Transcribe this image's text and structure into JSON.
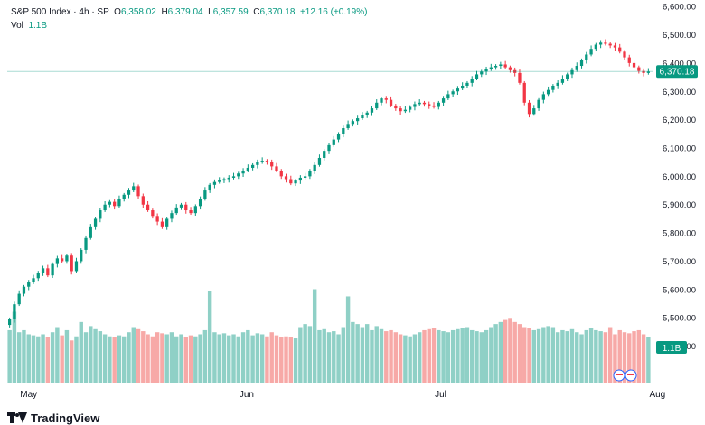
{
  "legend": {
    "symbol": "S&P 500 Index · 4h · SP",
    "o_label": "O",
    "o_value": "6,358.02",
    "h_label": "H",
    "h_value": "6,379.04",
    "l_label": "L",
    "l_value": "6,357.59",
    "c_label": "C",
    "c_value": "6,370.18",
    "change": "+12.16 (+0.19%)",
    "vol_label": "Vol",
    "vol_value": "1.1B"
  },
  "price_badge": "6,370.18",
  "volume_badge": "1.1B",
  "brand": "TradingView",
  "colors": {
    "up": "#089981",
    "down": "#f23645",
    "vol_up": "#8fd0c6",
    "vol_down": "#f7a9a7",
    "axis_text": "#131722",
    "price_line": "#089981"
  },
  "chart_data": {
    "type": "candlestick",
    "y_ticks": [
      5400,
      5500,
      5600,
      5700,
      5800,
      5900,
      6000,
      6100,
      6200,
      6300,
      6400,
      6500,
      6600
    ],
    "y_tick_labels": [
      "5,400.00",
      "5,500.00",
      "5,600.00",
      "5,700.00",
      "5,800.00",
      "5,900.00",
      "6,000.00",
      "6,100.00",
      "6,200.00",
      "6,300.00",
      "6,400.00",
      "6,500.00",
      "6,600.00"
    ],
    "ylim": [
      5335,
      6610
    ],
    "x_labels": [
      {
        "label": "May",
        "index": 1
      },
      {
        "label": "Jun",
        "index": 47
      },
      {
        "label": "Jul",
        "index": 88
      },
      {
        "label": "Aug",
        "index": 133
      }
    ],
    "last_price": 6370.18,
    "last_volume": "1.1B",
    "grid": false,
    "closes": [
      5495,
      5548,
      5585,
      5610,
      5625,
      5640,
      5660,
      5675,
      5650,
      5690,
      5710,
      5700,
      5720,
      5665,
      5700,
      5740,
      5782,
      5820,
      5850,
      5880,
      5900,
      5910,
      5895,
      5920,
      5935,
      5950,
      5965,
      5930,
      5900,
      5880,
      5860,
      5840,
      5820,
      5850,
      5870,
      5890,
      5900,
      5880,
      5870,
      5895,
      5920,
      5950,
      5970,
      5980,
      5985,
      5990,
      5995,
      6000,
      6010,
      6020,
      6030,
      6040,
      6050,
      6055,
      6050,
      6035,
      6020,
      6000,
      5990,
      5975,
      5985,
      5995,
      6000,
      6020,
      6040,
      6065,
      6090,
      6110,
      6130,
      6150,
      6170,
      6185,
      6195,
      6205,
      6215,
      6225,
      6240,
      6260,
      6275,
      6270,
      6250,
      6240,
      6230,
      6235,
      6245,
      6255,
      6260,
      6255,
      6250,
      6245,
      6260,
      6275,
      6290,
      6300,
      6310,
      6320,
      6330,
      6345,
      6360,
      6370,
      6378,
      6385,
      6390,
      6395,
      6385,
      6375,
      6365,
      6330,
      6260,
      6220,
      6240,
      6270,
      6290,
      6305,
      6320,
      6330,
      6345,
      6360,
      6375,
      6390,
      6410,
      6430,
      6450,
      6465,
      6472,
      6468,
      6462,
      6455,
      6440,
      6420,
      6400,
      6385,
      6372,
      6365,
      6370
    ],
    "volumes": [
      0.52,
      0.7,
      0.5,
      0.52,
      0.48,
      0.47,
      0.46,
      0.48,
      0.45,
      0.5,
      0.55,
      0.47,
      0.52,
      0.42,
      0.46,
      0.6,
      0.5,
      0.56,
      0.53,
      0.51,
      0.48,
      0.46,
      0.45,
      0.47,
      0.46,
      0.5,
      0.55,
      0.53,
      0.51,
      0.48,
      0.46,
      0.5,
      0.49,
      0.48,
      0.5,
      0.46,
      0.48,
      0.45,
      0.47,
      0.46,
      0.48,
      0.52,
      0.9,
      0.5,
      0.48,
      0.49,
      0.47,
      0.48,
      0.46,
      0.5,
      0.52,
      0.47,
      0.49,
      0.48,
      0.46,
      0.5,
      0.47,
      0.45,
      0.46,
      0.45,
      0.44,
      0.55,
      0.58,
      0.56,
      0.92,
      0.52,
      0.53,
      0.5,
      0.51,
      0.48,
      0.55,
      0.85,
      0.6,
      0.58,
      0.55,
      0.58,
      0.52,
      0.56,
      0.53,
      0.51,
      0.52,
      0.5,
      0.48,
      0.47,
      0.46,
      0.48,
      0.5,
      0.52,
      0.53,
      0.54,
      0.52,
      0.51,
      0.5,
      0.52,
      0.53,
      0.54,
      0.55,
      0.52,
      0.51,
      0.5,
      0.52,
      0.55,
      0.58,
      0.6,
      0.62,
      0.64,
      0.6,
      0.58,
      0.55,
      0.54,
      0.52,
      0.53,
      0.55,
      0.56,
      0.55,
      0.5,
      0.52,
      0.51,
      0.53,
      0.5,
      0.48,
      0.52,
      0.54,
      0.52,
      0.51,
      0.5,
      0.55,
      0.48,
      0.52,
      0.5,
      0.49,
      0.51,
      0.52,
      0.48,
      0.45
    ]
  }
}
